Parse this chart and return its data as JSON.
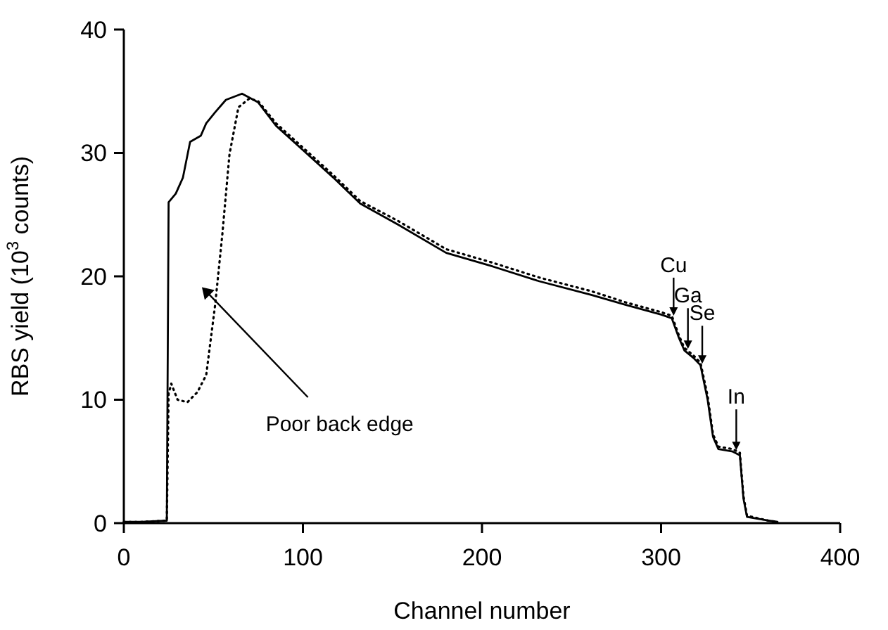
{
  "chart_data": {
    "type": "line",
    "xlabel": "Channel number",
    "ylabel": "RBS yield (10$^{3}$ counts)",
    "xlim": [
      0,
      400
    ],
    "xticks": [
      0,
      100,
      200,
      300,
      400
    ],
    "ylim": [
      0,
      40
    ],
    "yticks": [
      0,
      10,
      20,
      30,
      40
    ],
    "grid": false,
    "series": [
      {
        "color": "#000000",
        "line_style": "solid",
        "x": [
          0,
          10,
          24,
          25,
          29,
          33,
          37,
          43,
          46,
          51,
          57,
          66,
          75,
          85,
          101,
          117,
          132,
          153,
          180,
          206,
          232,
          261,
          280,
          300,
          306,
          310,
          313,
          318,
          322,
          326,
          329,
          332,
          340,
          344,
          346,
          348,
          360,
          365
        ],
        "values": [
          0.1,
          0.1,
          0.2,
          26,
          26.7,
          28,
          30.9,
          31.4,
          32.4,
          33.3,
          34.3,
          34.8,
          34.1,
          32.2,
          30.1,
          28,
          25.9,
          24.2,
          21.9,
          20.8,
          19.6,
          18.5,
          17.7,
          16.9,
          16.6,
          15,
          14,
          13.4,
          12.8,
          10,
          7,
          6,
          5.8,
          5.5,
          2,
          0.5,
          0.2,
          0.1
        ]
      },
      {
        "color": "#000000",
        "line_style": "dotted",
        "x": [
          0,
          10,
          24,
          25,
          26.5,
          30,
          35.5,
          41,
          46,
          51,
          55,
          59,
          64,
          70,
          75,
          85,
          101,
          117,
          132,
          153,
          180,
          206,
          232,
          261,
          280,
          300,
          306,
          310,
          313,
          318,
          322,
          326,
          329,
          332,
          340,
          344,
          346,
          348,
          360,
          365
        ],
        "values": [
          0.1,
          0.1,
          0.2,
          10.5,
          11.3,
          10,
          9.8,
          10.6,
          12,
          17.7,
          23.4,
          29.9,
          33.7,
          34.4,
          34.2,
          32.4,
          30.3,
          28.2,
          26.1,
          24.5,
          22.2,
          21.1,
          19.9,
          18.8,
          17.9,
          17.1,
          16.8,
          15.2,
          14.2,
          13.6,
          13,
          10.3,
          7.2,
          6.2,
          6,
          5.7,
          2.2,
          0.6,
          0.2,
          0.1
        ]
      }
    ],
    "annotations": [
      "Poor back edge",
      {
        "text": "Cu",
        "x": 307,
        "y": 16.7
      },
      {
        "text": "Ga",
        "x": 315,
        "y": 14
      },
      {
        "text": "Se",
        "x": 323,
        "y": 12.8
      },
      {
        "text": "In",
        "x": 342,
        "y": 5.8
      }
    ]
  }
}
